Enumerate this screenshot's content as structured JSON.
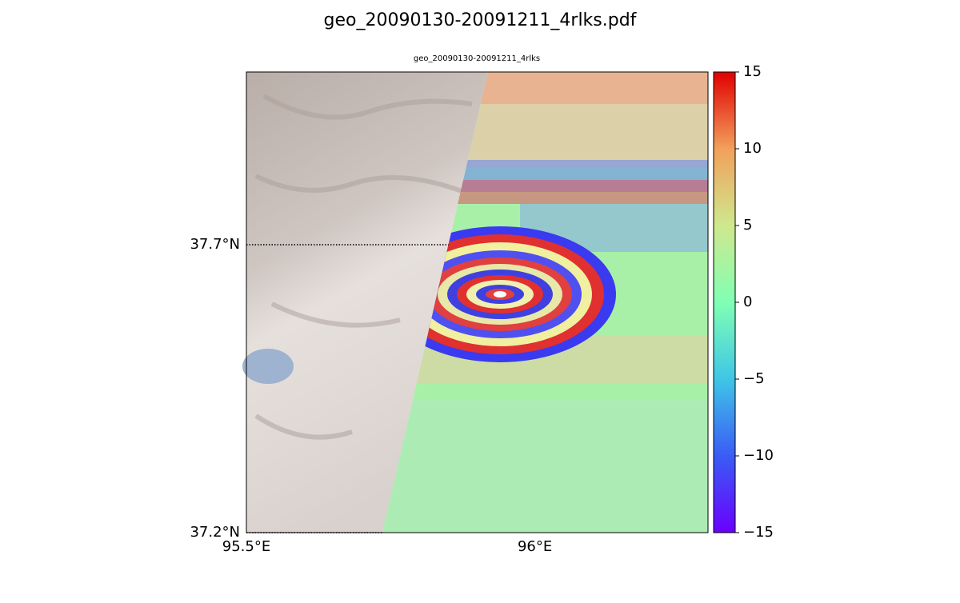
{
  "chart_data": {
    "type": "image",
    "title": "geo_20090130-20091211_4rlks.pdf",
    "subtitle": "geo_20090130-20091211_4rlks",
    "xlim": [
      95.5,
      96.3
    ],
    "xticks": [
      {
        "value": 95.5,
        "label": "95.5°E"
      },
      {
        "value": 96,
        "label": "96°E"
      }
    ],
    "ylim": [
      37.2,
      38.0
    ],
    "yticks": [
      {
        "value": 37.2,
        "label": "37.2°N"
      },
      {
        "value": 37.7,
        "label": "37.7°N"
      }
    ],
    "grid": true,
    "colorbar": {
      "lim": [
        -15,
        15
      ],
      "ticks": [
        {
          "value": -15,
          "label": "−15"
        },
        {
          "value": -10,
          "label": "−10"
        },
        {
          "value": -5,
          "label": "−5"
        },
        0,
        5,
        10,
        15
      ],
      "colors": [
        "#6a00ff",
        "#3a5cf5",
        "#3fc6e6",
        "#80ffb4",
        "#cfe88e",
        "#f2a05c",
        "#e00000"
      ]
    }
  }
}
